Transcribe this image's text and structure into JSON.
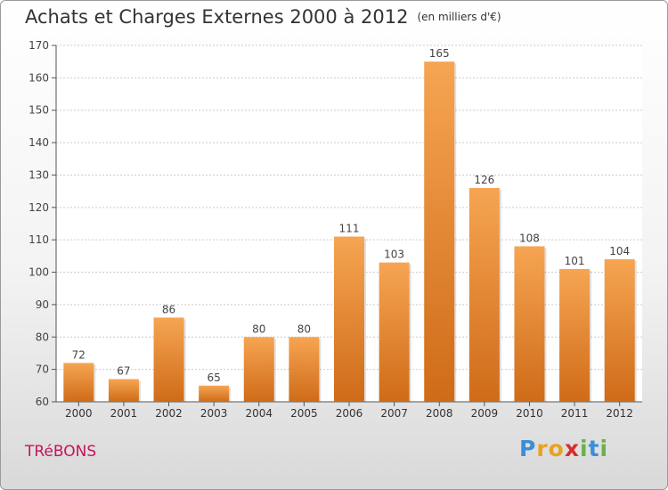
{
  "title": "Achats et Charges Externes 2000 à 2012",
  "unit_label": "(en milliers d'€)",
  "commune": "TRéBONS",
  "logo": {
    "text": "Proxiti",
    "letters": [
      "P",
      "r",
      "o",
      "x",
      "i",
      "t",
      "i"
    ],
    "colors": [
      "#3a8fd6",
      "#e8a21f",
      "#e8a21f",
      "#d62e2e",
      "#6ab04c",
      "#3a8fd6",
      "#6ab04c"
    ]
  },
  "colors": {
    "bar_top": "#f6a552",
    "bar_bottom": "#cf6b18",
    "grid": "#cccccc",
    "commune": "#c4145a"
  },
  "chart_data": {
    "type": "bar",
    "title": "Achats et Charges Externes 2000 à 2012",
    "categories": [
      "2000",
      "2001",
      "2002",
      "2003",
      "2004",
      "2005",
      "2006",
      "2007",
      "2008",
      "2009",
      "2010",
      "2011",
      "2012"
    ],
    "values": [
      72,
      67,
      86,
      65,
      80,
      80,
      111,
      103,
      165,
      126,
      108,
      101,
      104
    ],
    "ylim": [
      60,
      170
    ],
    "yticks": [
      60,
      70,
      80,
      90,
      100,
      110,
      120,
      130,
      140,
      150,
      160,
      170
    ],
    "grid": true
  }
}
